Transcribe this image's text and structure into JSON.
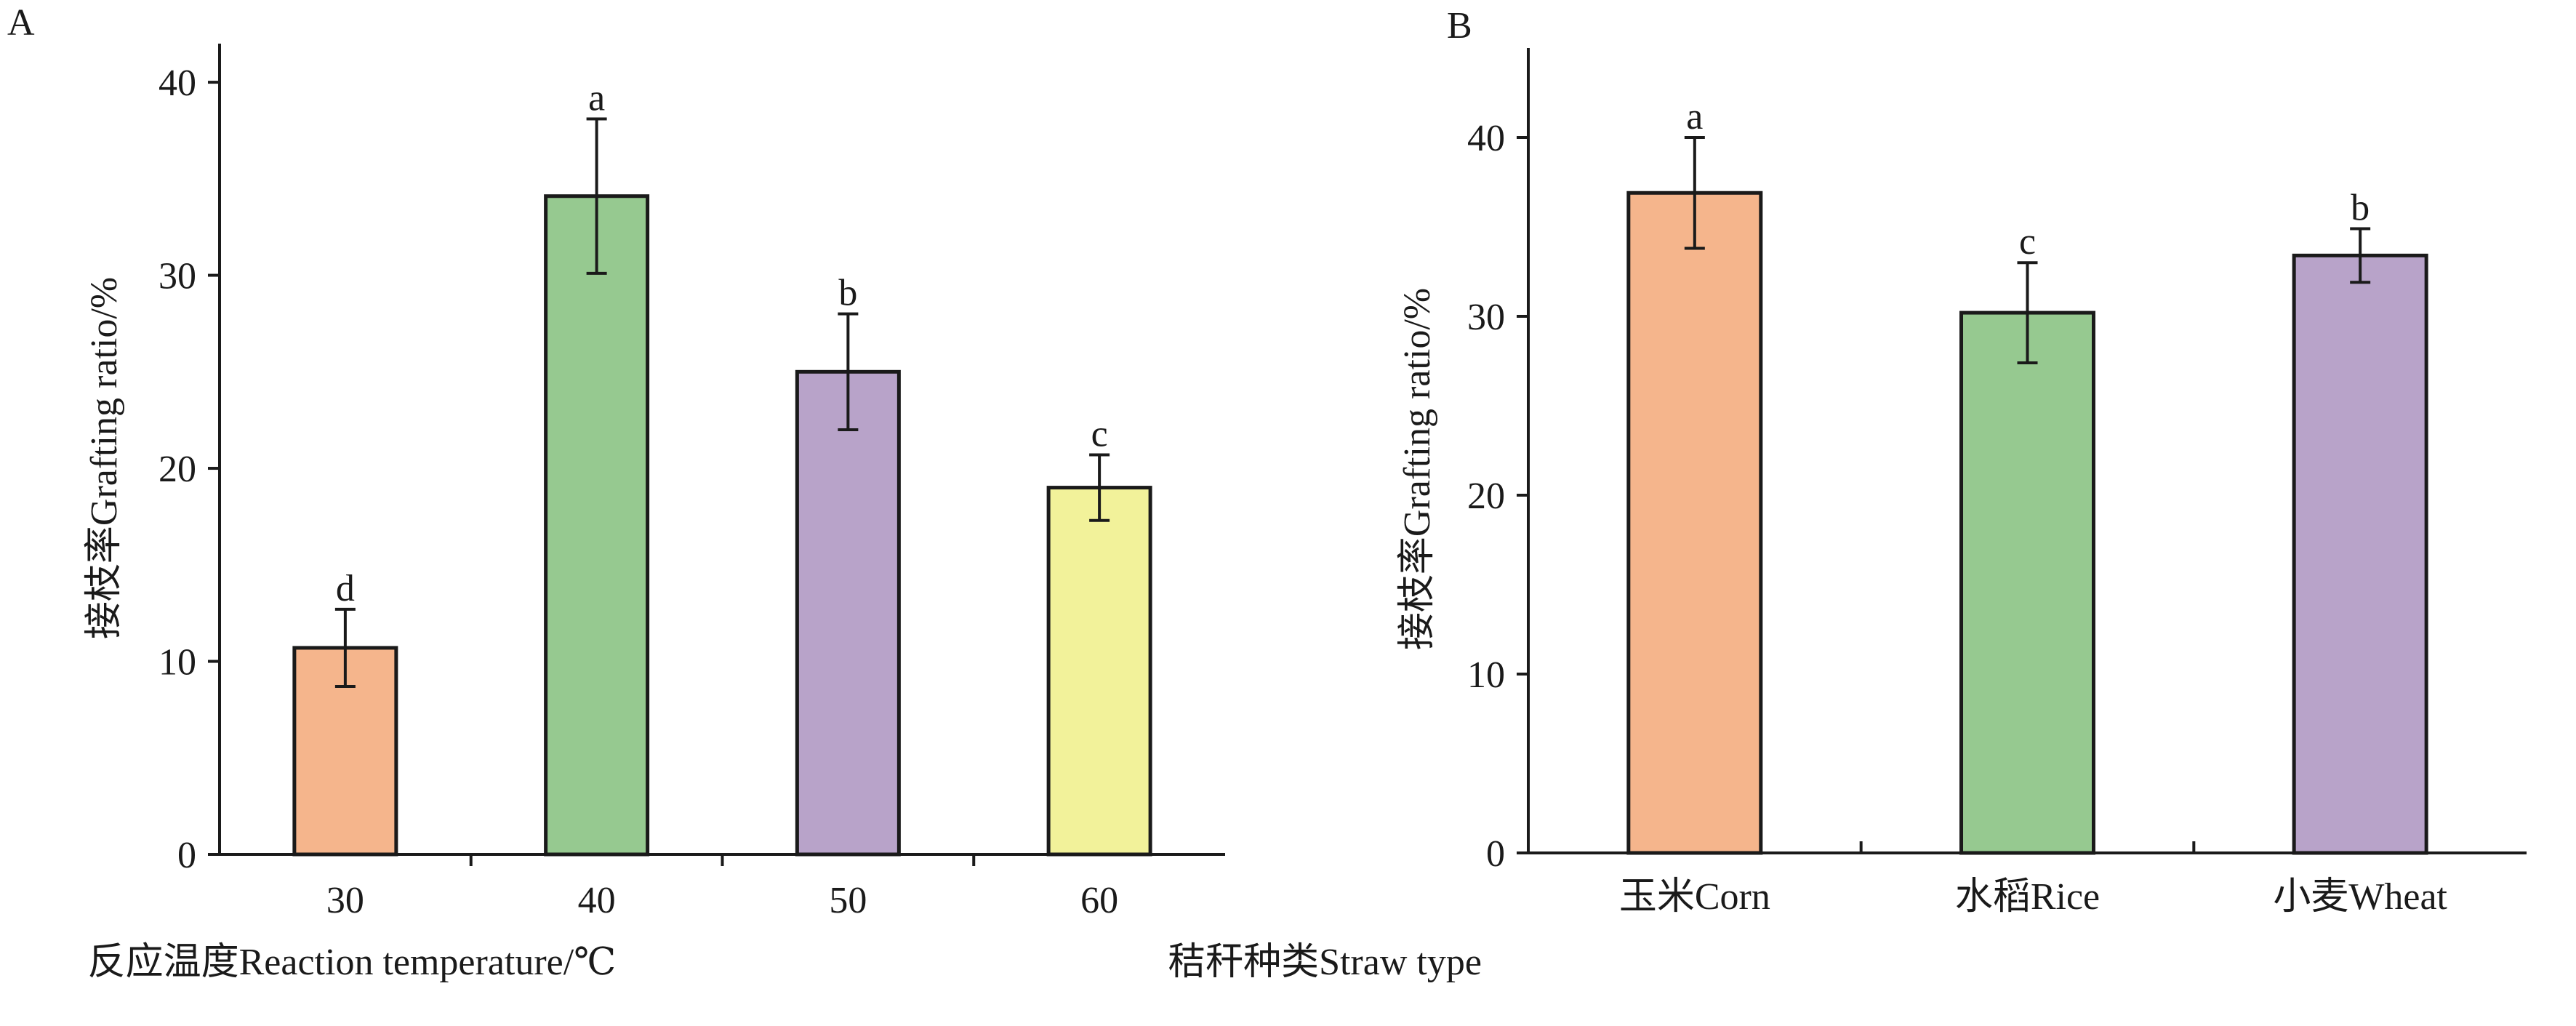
{
  "chart_data": [
    {
      "panel": "A",
      "type": "bar",
      "categories": [
        "30",
        "40",
        "50",
        "60"
      ],
      "values": [
        10.7,
        34.1,
        25.0,
        19.0
      ],
      "errors": [
        2.0,
        4.0,
        3.0,
        1.7
      ],
      "significance": [
        "d",
        "a",
        "b",
        "c"
      ],
      "colors": [
        "#f5b58c",
        "#96c990",
        "#b8a3c9",
        "#f2f29a"
      ],
      "xlabel": "反应温度Reaction temperature/℃",
      "ylabel": "接枝率Grafting ratio/%",
      "ylim": [
        0,
        42
      ],
      "yticks": [
        0,
        10,
        20,
        30,
        40
      ],
      "grid": false
    },
    {
      "panel": "B",
      "type": "bar",
      "categories": [
        "玉米Corn",
        "水稻Rice",
        "小麦Wheat"
      ],
      "values": [
        36.9,
        30.2,
        33.4
      ],
      "errors": [
        3.1,
        2.8,
        1.5
      ],
      "significance": [
        "a",
        "c",
        "b"
      ],
      "colors": [
        "#f5b58c",
        "#96c990",
        "#b8a3c9"
      ],
      "xlabel": "秸秆种类Straw type",
      "ylabel": "接枝率Grafting ratio/%",
      "ylim": [
        0,
        45
      ],
      "yticks": [
        0,
        10,
        20,
        30,
        40
      ],
      "grid": false
    }
  ]
}
